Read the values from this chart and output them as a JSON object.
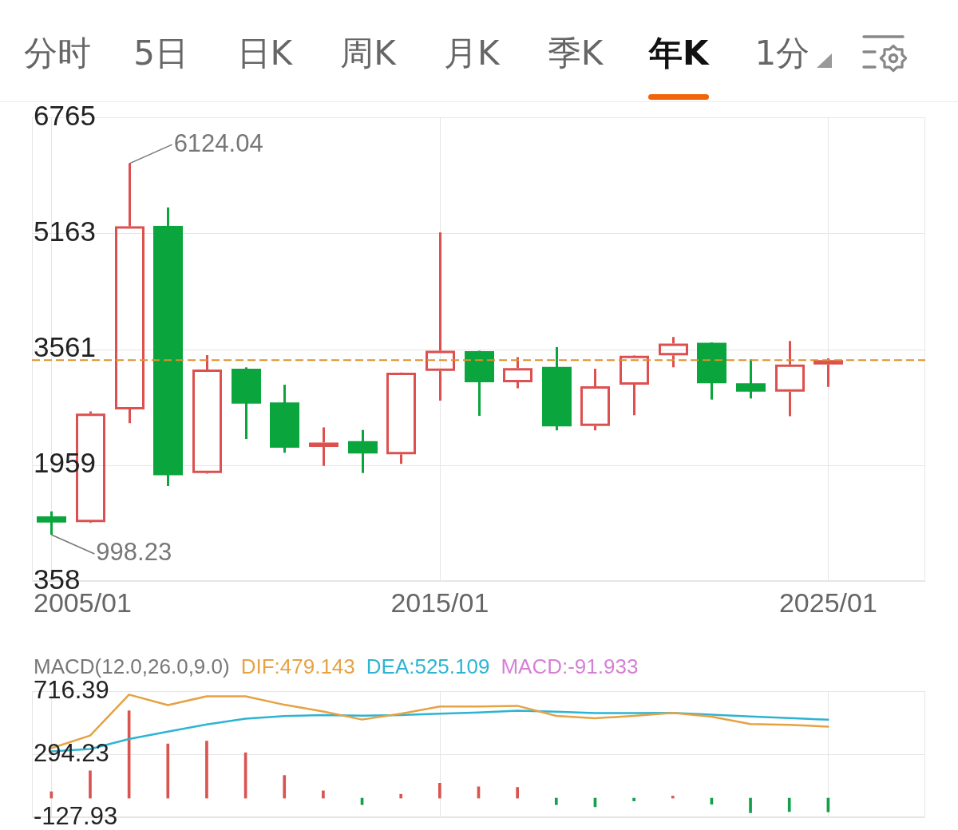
{
  "chart_data": [
    {
      "type": "other",
      "annotations": [
        "分时",
        "5日",
        "日K",
        "周K",
        "月K",
        "季K",
        "年K",
        "1分"
      ]
    },
    {
      "type": "candlestick",
      "x": [
        "2005-01",
        "2006-01",
        "2007-01",
        "2008-01",
        "2009-01",
        "2010-01",
        "2011-01",
        "2012-01",
        "2013-01",
        "2014-01",
        "2015-01",
        "2016-01",
        "2017-01",
        "2018-01",
        "2019-01",
        "2020-01",
        "2021-01",
        "2022-01",
        "2023-01",
        "2024-01",
        "2025-01"
      ],
      "ohlc": [
        [
          1250,
          1320,
          998.23,
          1165
        ],
        [
          1170,
          2700,
          1160,
          2670
        ],
        [
          2730,
          6124.04,
          2540,
          5260
        ],
        [
          5265,
          5520,
          1670,
          1820
        ],
        [
          1850,
          3480,
          1840,
          3280
        ],
        [
          3290,
          3310,
          2320,
          2810
        ],
        [
          2825,
          3070,
          2130,
          2200
        ],
        [
          2210,
          2480,
          1950,
          2270
        ],
        [
          2290,
          2445,
          1850,
          2120
        ],
        [
          2110,
          3240,
          1975,
          3235
        ],
        [
          3260,
          5175,
          2850,
          3540
        ],
        [
          3535,
          3540,
          2640,
          3105
        ],
        [
          3105,
          3450,
          3020,
          3300
        ],
        [
          3315,
          3590,
          2440,
          2495
        ],
        [
          2500,
          3290,
          2440,
          3050
        ],
        [
          3070,
          3475,
          2650,
          3470
        ],
        [
          3475,
          3730,
          3310,
          3640
        ],
        [
          3650,
          3655,
          2865,
          3090
        ],
        [
          3090,
          3420,
          2880,
          2975
        ],
        [
          2975,
          3675,
          2635,
          3350
        ],
        [
          3350,
          3435,
          3040,
          3410
        ]
      ],
      "colors": [
        "#0aa53c",
        "#dd5050",
        "#dd5050",
        "#0aa53c",
        "#dd5050",
        "#0aa53c",
        "#0aa53c",
        "#dd5050",
        "#0aa53c",
        "#dd5050",
        "#dd5050",
        "#0aa53c",
        "#dd5050",
        "#0aa53c",
        "#dd5050",
        "#dd5050",
        "#dd5050",
        "#0aa53c",
        "#0aa53c",
        "#dd5050",
        "#dd5050"
      ],
      "xlim": [
        "2004-07",
        "2027-07"
      ],
      "xticks": [
        {
          "value": "2005-01",
          "label": "2005/01"
        },
        {
          "value": "2015-01",
          "label": "2015/01"
        },
        {
          "value": "2025-01",
          "label": "2025/01"
        }
      ],
      "ylim": [
        358,
        6765
      ],
      "yticks": [
        358,
        1959,
        3561,
        5163,
        6765
      ],
      "grid": true,
      "ref_lines": [
        {
          "axis": "y",
          "value": 3410,
          "color": "#e0902a",
          "line_style": "dashed"
        }
      ],
      "annotations": [
        {
          "text": "6124.04",
          "x": "2007-01",
          "y": 6124.04
        },
        {
          "text": "998.23",
          "x": "2005-01",
          "y": 998.23
        }
      ]
    },
    {
      "type": "line",
      "title": "MACD(12.0,26.0,9.0)",
      "x": [
        "2005-01",
        "2006-01",
        "2007-01",
        "2008-01",
        "2009-01",
        "2010-01",
        "2011-01",
        "2012-01",
        "2013-01",
        "2014-01",
        "2015-01",
        "2016-01",
        "2017-01",
        "2018-01",
        "2019-01",
        "2020-01",
        "2021-01",
        "2022-01",
        "2023-01",
        "2024-01",
        "2025-01"
      ],
      "series": [
        {
          "name": "DIF:479.143",
          "color": "#e6a243",
          "values": [
            334,
            419,
            693,
            623,
            682,
            682,
            625,
            580,
            526,
            565,
            614,
            614,
            618,
            551,
            535,
            551,
            571,
            545,
            496,
            490,
            479.143
          ]
        },
        {
          "name": "DEA:525.109",
          "color": "#2db4d2",
          "values": [
            313,
            329,
            396,
            445,
            493,
            532,
            550,
            556,
            552,
            556,
            565,
            574,
            585,
            579,
            569,
            569,
            571,
            559,
            547,
            536,
            525.109
          ]
        },
        {
          "type": "bar",
          "colors": [
            "#d9534f",
            "#d9534f",
            "#d9534f",
            "#d9534f",
            "#d9534f",
            "#d9534f",
            "#d9534f",
            "#d9534f",
            "#14a04a",
            "#d9534f",
            "#d9534f",
            "#d9534f",
            "#d9534f",
            "#14a04a",
            "#14a04a",
            "#14a04a",
            "#d9534f",
            "#14a04a",
            "#14a04a",
            "#14a04a",
            "#14a04a"
          ],
          "values": [
            43,
            183,
            585,
            363,
            382,
            304,
            152,
            49,
            -44,
            26,
            100,
            76,
            72,
            -44,
            -58,
            -19,
            14,
            -41,
            -98,
            -90,
            -91.933
          ]
        }
      ],
      "annotations": [
        "MACD:-91.933"
      ],
      "xlim": [
        "2004-07",
        "2027-07"
      ],
      "xticks": [
        {
          "value": "2005-01",
          "label": null
        },
        {
          "value": "2015-01",
          "label": null
        },
        {
          "value": "2025-01",
          "label": null
        }
      ],
      "ylim": [
        -127.93,
        716.39
      ],
      "yticks": [
        -127.93,
        294.23,
        716.39
      ],
      "grid": true,
      "legend": "top left",
      "tick_labels": "y",
      "marker": "none"
    }
  ]
}
